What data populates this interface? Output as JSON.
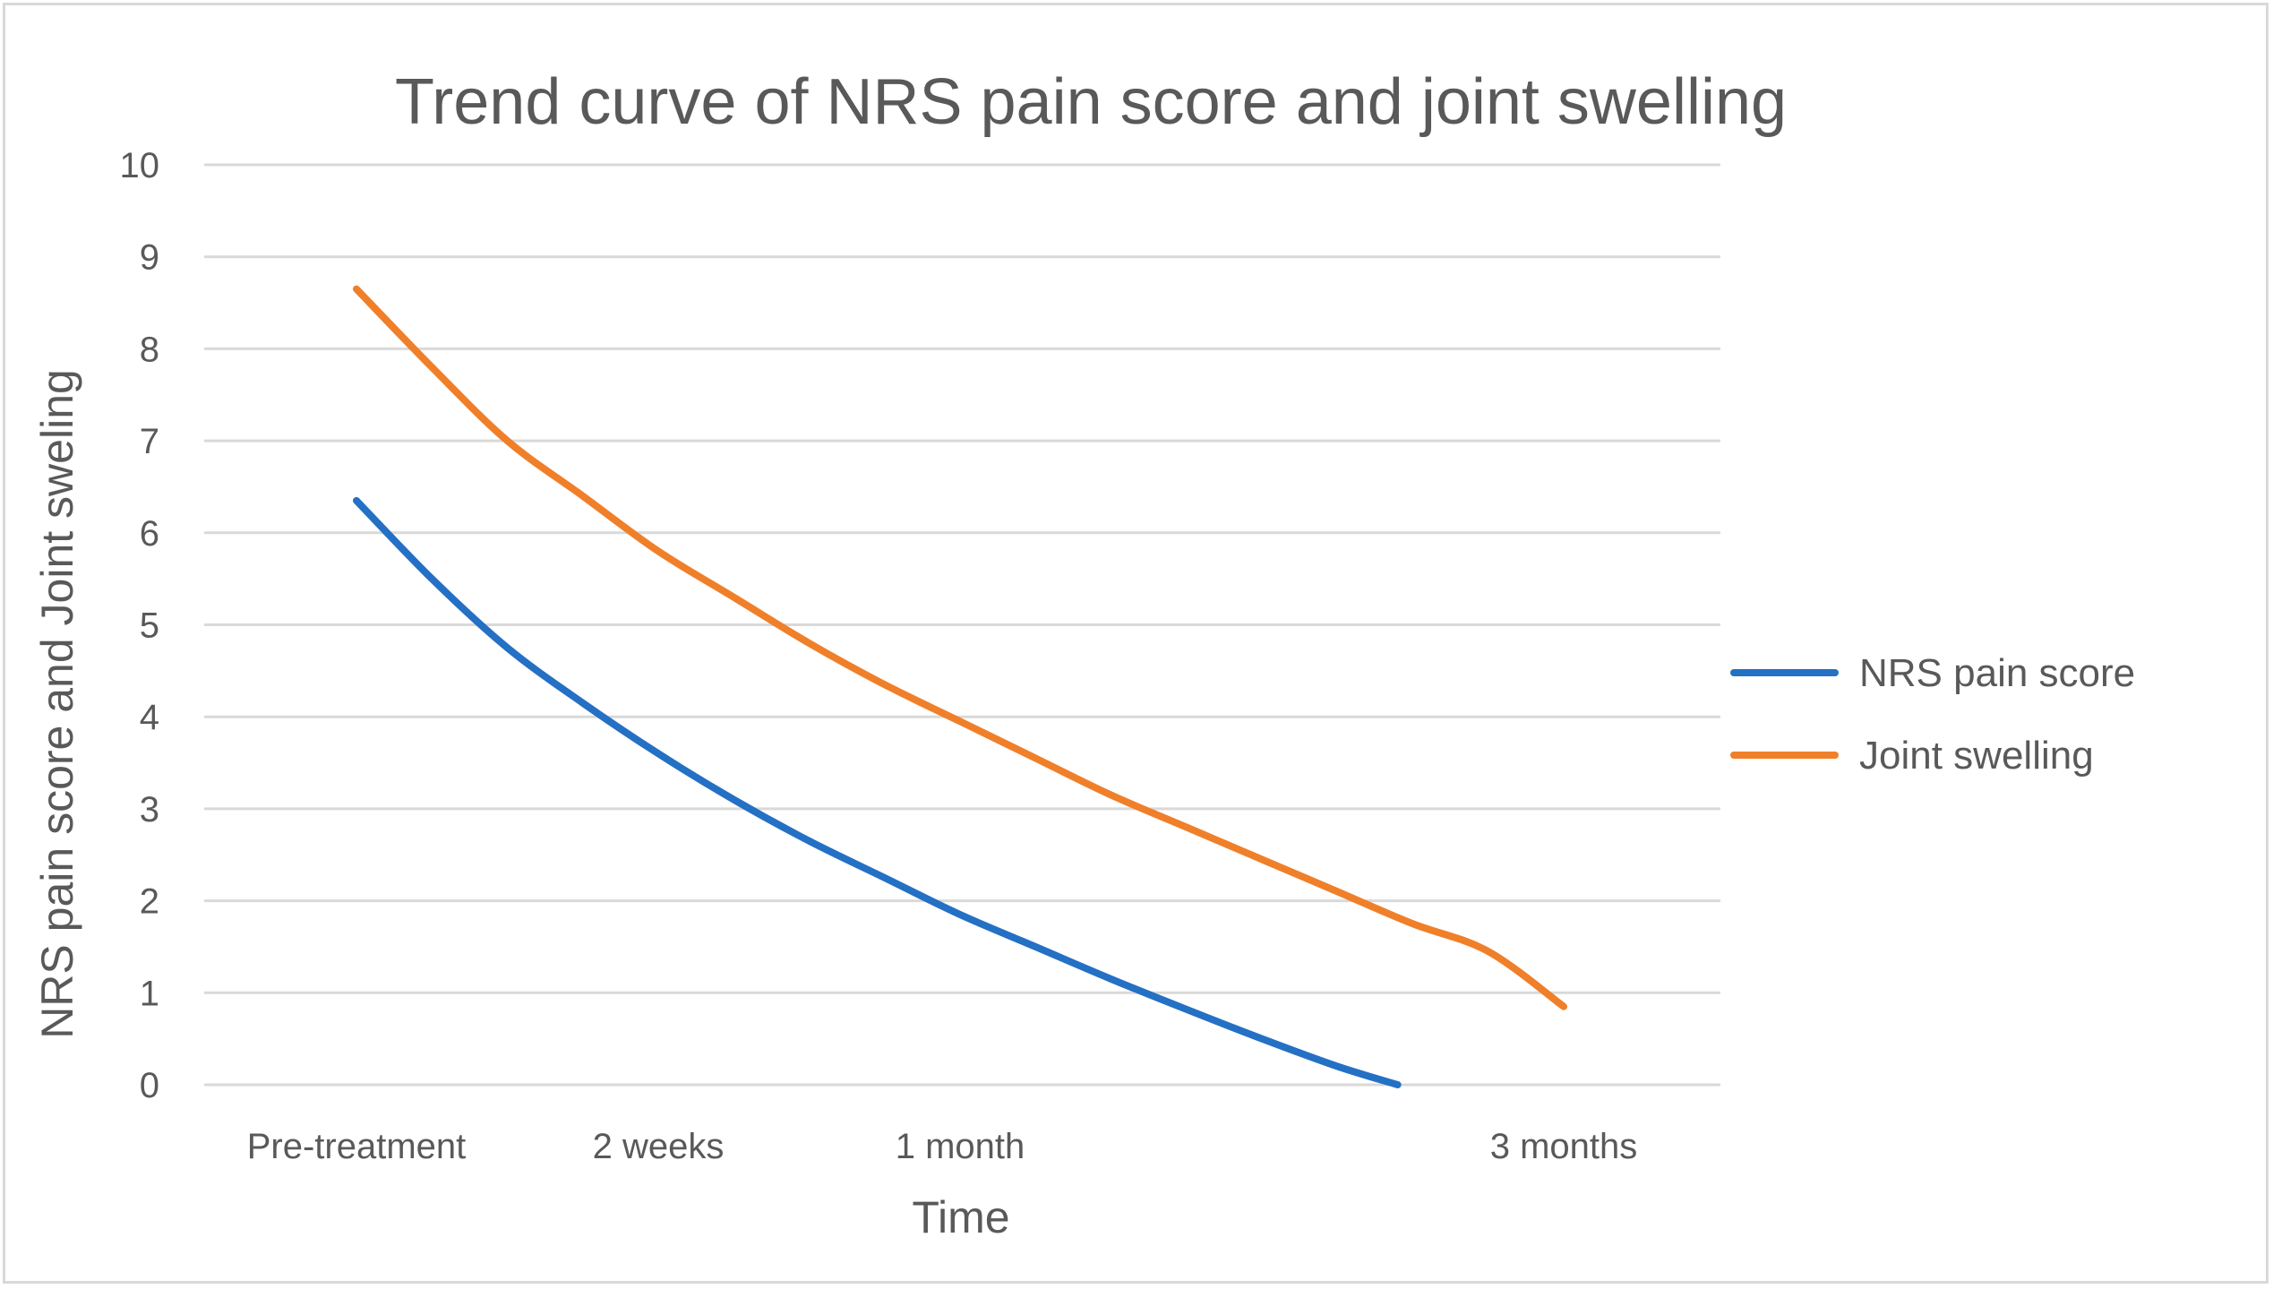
{
  "chart_data": {
    "type": "line",
    "title": "Trend curve of NRS pain score and joint swelling",
    "xlabel": "Time",
    "ylabel": "NRS pain score and Joint sweling",
    "ylim": [
      0,
      10
    ],
    "yticks": [
      0,
      1,
      2,
      3,
      4,
      5,
      6,
      7,
      8,
      9,
      10
    ],
    "grid": true,
    "legend_position": "right",
    "categories": [
      "Pre-treatment",
      "2 weeks",
      "1 month",
      "3 months"
    ],
    "x_positions": [
      0,
      1,
      2,
      4
    ],
    "series": [
      {
        "name": "NRS pain score",
        "color": "#2470c4",
        "x": [
          0,
          0.25,
          0.5,
          0.75,
          1,
          1.25,
          1.5,
          1.75,
          2,
          2.25,
          2.5,
          2.75,
          3,
          3.25,
          3.45
        ],
        "values": [
          6.35,
          5.5,
          4.75,
          4.15,
          3.6,
          3.1,
          2.65,
          2.25,
          1.85,
          1.5,
          1.15,
          0.82,
          0.5,
          0.2,
          0
        ]
      },
      {
        "name": "Joint swelling",
        "color": "#f07f2a",
        "x": [
          0,
          0.25,
          0.5,
          0.75,
          1,
          1.25,
          1.5,
          1.75,
          2,
          2.25,
          2.5,
          2.75,
          3,
          3.25,
          3.5,
          3.75,
          4
        ],
        "values": [
          8.65,
          7.8,
          7.0,
          6.4,
          5.8,
          5.3,
          4.8,
          4.35,
          3.95,
          3.55,
          3.15,
          2.8,
          2.45,
          2.1,
          1.75,
          1.45,
          0.85
        ]
      }
    ]
  }
}
